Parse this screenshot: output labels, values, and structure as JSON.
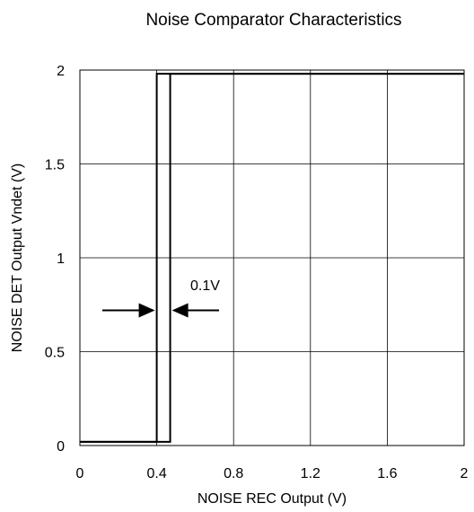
{
  "chart_data": {
    "type": "line",
    "title": "Noise Comparator Characteristics",
    "xlabel": "NOISE REC Output (V)",
    "ylabel": "NOISE DET Output Vndet (V)",
    "xlim": [
      0,
      2
    ],
    "ylim": [
      0,
      2
    ],
    "x_ticks": [
      "0",
      "0.4",
      "0.8",
      "1.2",
      "1.6",
      "2"
    ],
    "y_ticks": [
      "0",
      "0.5",
      "1",
      "1.5",
      "2"
    ],
    "grid": true,
    "series": [
      {
        "x": [
          0,
          0.4,
          0.4,
          2
        ],
        "y": [
          0.02,
          0.02,
          1.98,
          1.98
        ]
      },
      {
        "x": [
          0,
          0.47,
          0.47,
          2
        ],
        "y": [
          0.02,
          0.02,
          1.98,
          1.98
        ]
      }
    ],
    "annotation": {
      "text": "0.1V",
      "y": 0.72,
      "x_left": 0.4,
      "x_right": 0.47
    }
  }
}
